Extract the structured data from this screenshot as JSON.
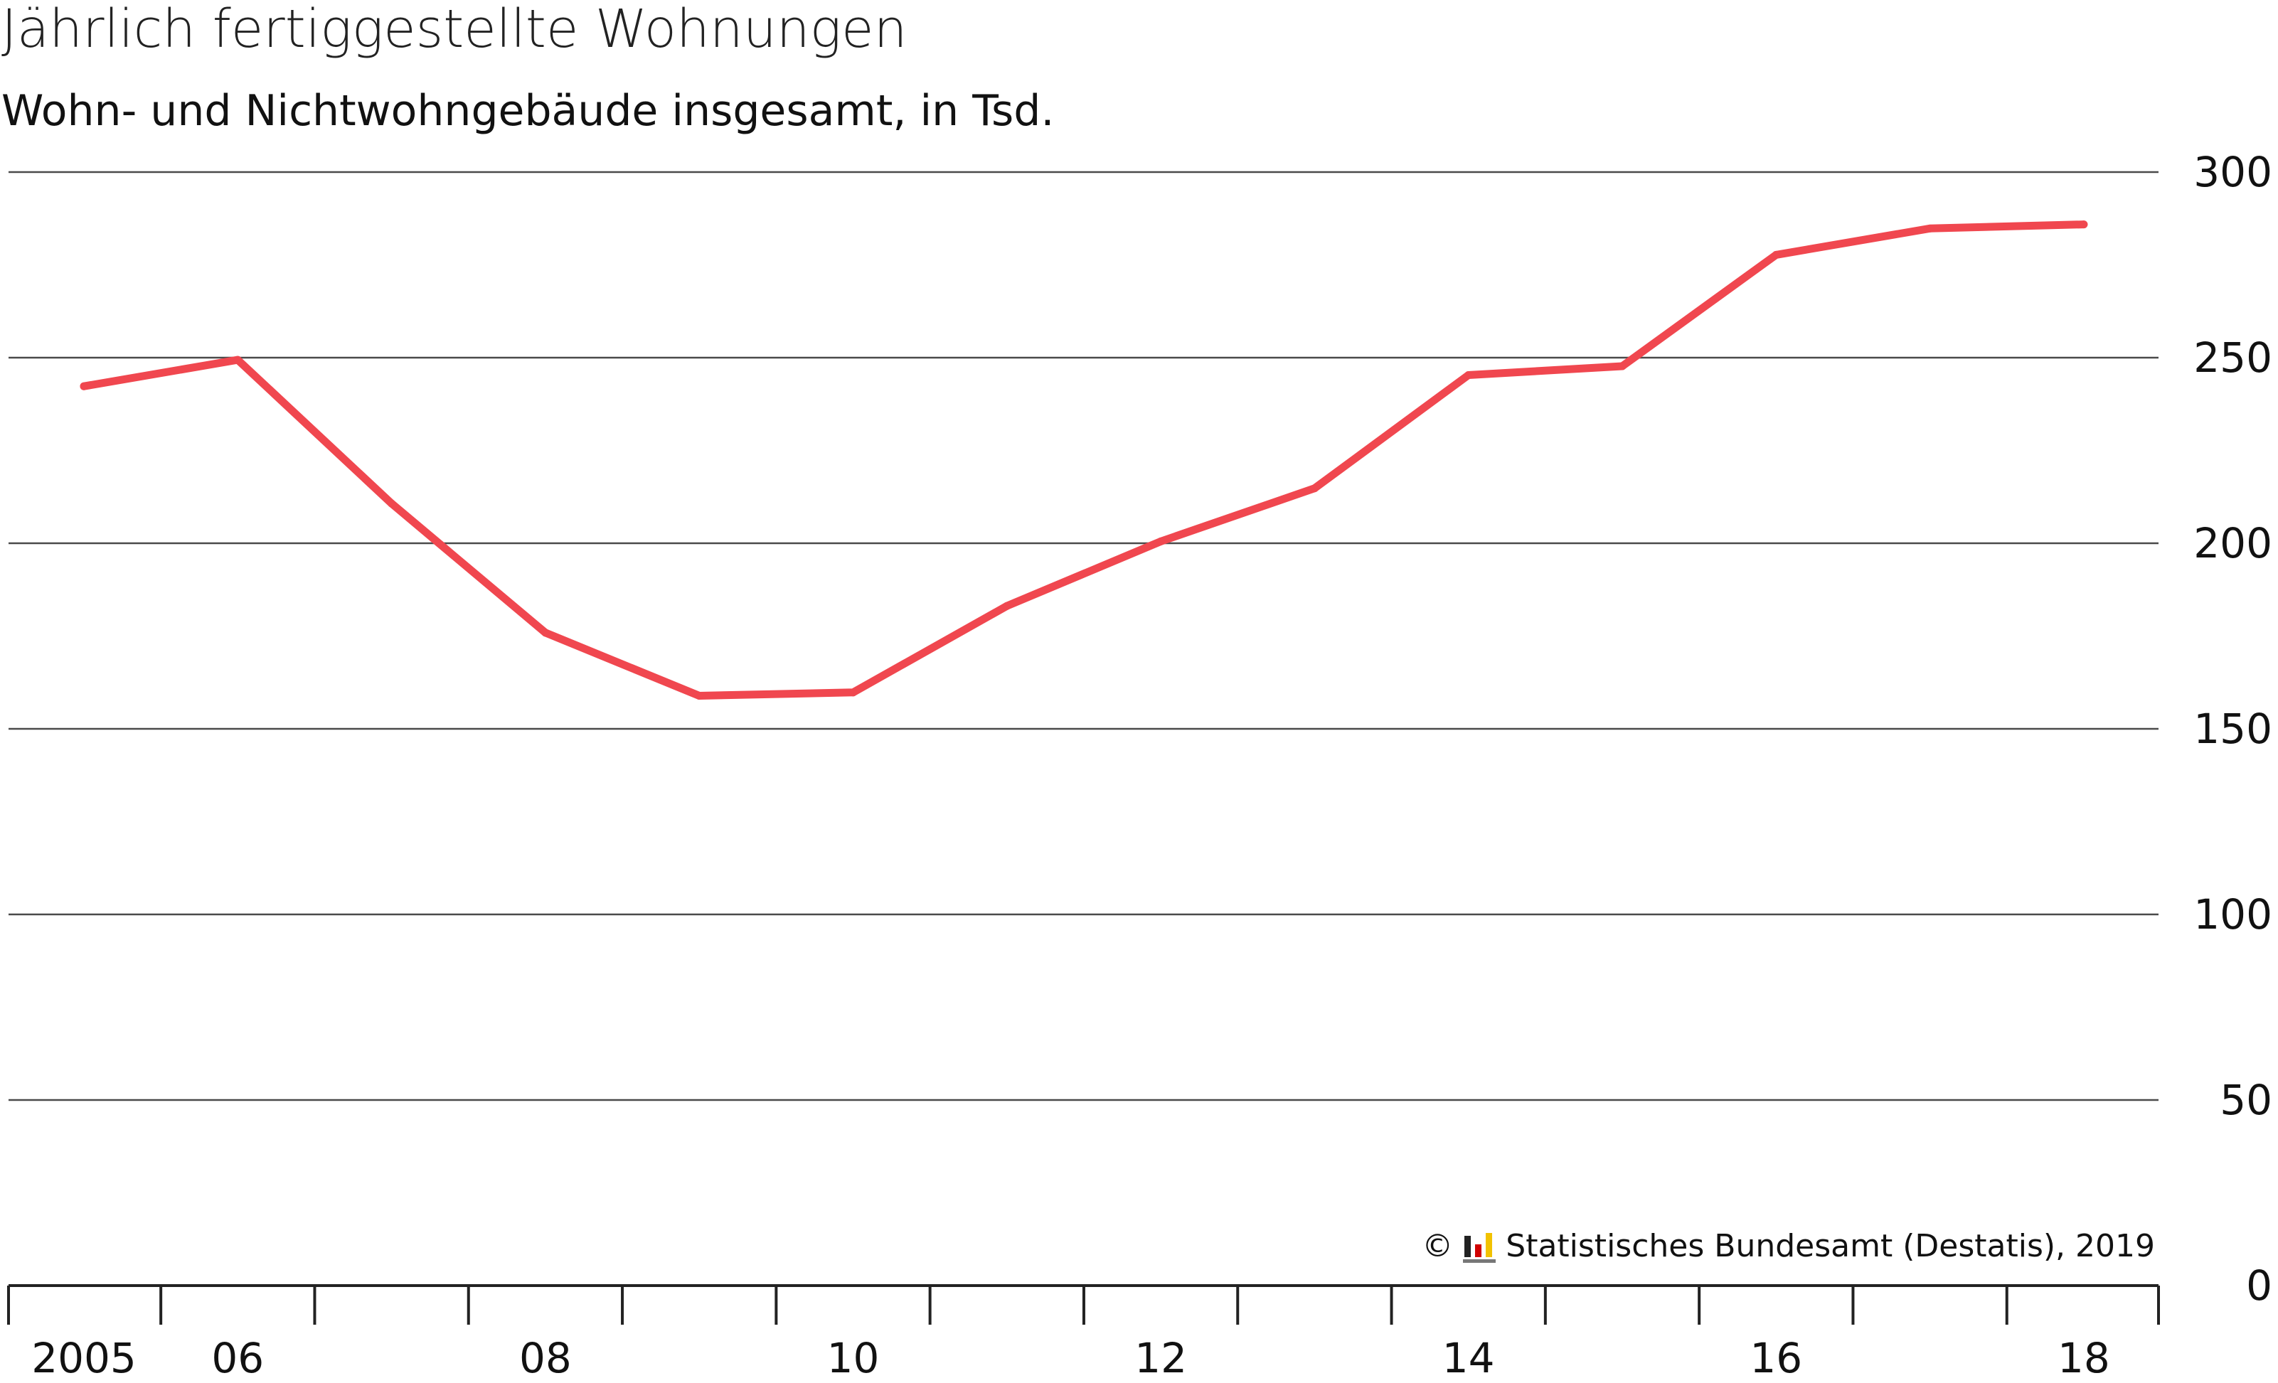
{
  "chart_data": {
    "type": "line",
    "title": "Jährlich fertiggestellte Wohnungen",
    "subtitle": "Wohn- und Nichtwohngebäude insgesamt, in Tsd.",
    "xlabel": "",
    "ylabel": "",
    "x": [
      2005,
      2006,
      2007,
      2008,
      2009,
      2010,
      2011,
      2012,
      2013,
      2014,
      2015,
      2016,
      2017,
      2018
    ],
    "x_tick_labels": [
      "2005",
      "06",
      "08",
      "10",
      "12",
      "14",
      "16",
      "18"
    ],
    "x_tick_years": [
      2005,
      2006,
      2008,
      2010,
      2012,
      2014,
      2016,
      2018
    ],
    "series": [
      {
        "values": [
          242.3,
          249.4,
          210.7,
          175.9,
          158.9,
          159.8,
          183.1,
          200.5,
          214.8,
          245.3,
          247.7,
          277.7,
          284.8,
          285.9
        ],
        "color": "#f0474f"
      }
    ],
    "ylim": [
      0,
      300
    ],
    "y_ticks": [
      0,
      50,
      100,
      150,
      200,
      250,
      300
    ],
    "y_axis_position": "right",
    "grid": true
  },
  "source": {
    "copyright": "©",
    "text": "Statistisches Bundesamt (Destatis), 2019"
  }
}
